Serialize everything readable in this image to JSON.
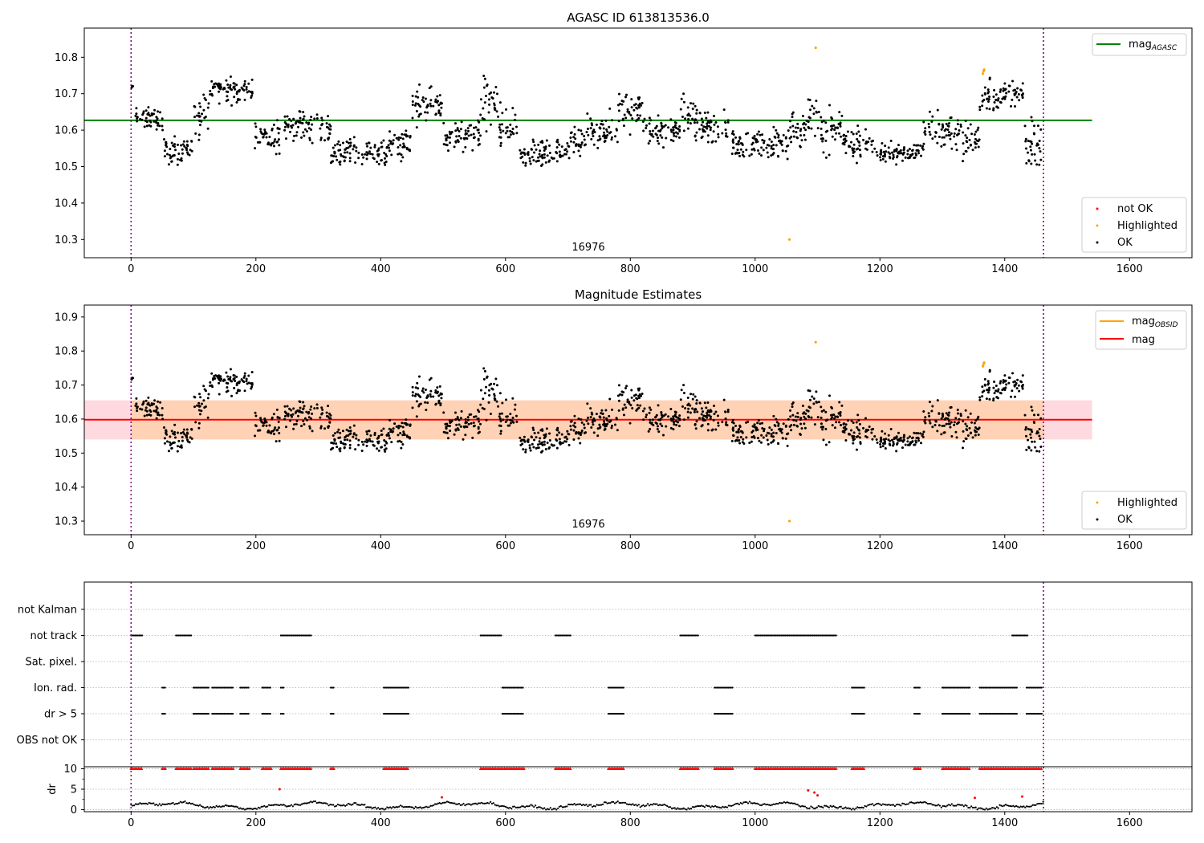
{
  "figure": {
    "title_top": "AGASC ID 613813536.0",
    "title_mid": "Magnitude Estimates"
  },
  "chart_data": [
    {
      "type": "scatter",
      "title": "AGASC ID 613813536.0",
      "xlim": [
        -75,
        1700
      ],
      "ylim": [
        10.25,
        10.88
      ],
      "x_ticks": [
        0,
        200,
        400,
        600,
        800,
        1000,
        1200,
        1400,
        1600
      ],
      "y_ticks": [
        10.3,
        10.4,
        10.5,
        10.6,
        10.7,
        10.8
      ],
      "vlines_dotted": [
        0,
        1462
      ],
      "hline": {
        "name": "mag_AGASC",
        "y": 10.627,
        "x_range": [
          -75,
          1540
        ],
        "color": "#008000"
      },
      "obsid_label": {
        "text": "16976",
        "x": 730,
        "y": 10.27
      },
      "highlighted_points": [
        [
          1055,
          10.3
        ],
        [
          1097,
          10.826
        ],
        [
          1365,
          10.755
        ],
        [
          1366,
          10.762
        ],
        [
          1367,
          10.766
        ]
      ],
      "legend_lines": [
        {
          "name": "mag",
          "sub": "AGASC",
          "color": "#008000"
        }
      ],
      "legend_points": [
        {
          "name": "not OK",
          "color": "#ff0000"
        },
        {
          "name": "Highlighted",
          "color": "#ffa500"
        },
        {
          "name": "OK",
          "color": "#000000"
        }
      ],
      "segments": [
        [
          0,
          3,
          10.72,
          0.01
        ],
        [
          5,
          12,
          10.64,
          0.01
        ],
        [
          14,
          38,
          10.63,
          0.02
        ],
        [
          40,
          52,
          10.63,
          0.025
        ],
        [
          52,
          62,
          10.55,
          0.03
        ],
        [
          62,
          80,
          10.54,
          0.025
        ],
        [
          80,
          100,
          10.55,
          0.02
        ],
        [
          100,
          125,
          10.63,
          0.04
        ],
        [
          125,
          160,
          10.71,
          0.025
        ],
        [
          160,
          195,
          10.71,
          0.025
        ],
        [
          198,
          240,
          10.58,
          0.025
        ],
        [
          245,
          300,
          10.61,
          0.03
        ],
        [
          300,
          320,
          10.61,
          0.03
        ],
        [
          320,
          410,
          10.54,
          0.025
        ],
        [
          410,
          450,
          10.56,
          0.025
        ],
        [
          450,
          500,
          10.67,
          0.03
        ],
        [
          500,
          530,
          10.58,
          0.025
        ],
        [
          530,
          560,
          10.59,
          0.03
        ],
        [
          560,
          590,
          10.68,
          0.05
        ],
        [
          590,
          620,
          10.61,
          0.03
        ],
        [
          620,
          700,
          10.54,
          0.025
        ],
        [
          700,
          730,
          10.57,
          0.025
        ],
        [
          730,
          780,
          10.59,
          0.03
        ],
        [
          780,
          820,
          10.65,
          0.035
        ],
        [
          820,
          880,
          10.6,
          0.025
        ],
        [
          880,
          915,
          10.63,
          0.04
        ],
        [
          915,
          960,
          10.61,
          0.03
        ],
        [
          960,
          1000,
          10.56,
          0.025
        ],
        [
          1000,
          1055,
          10.56,
          0.035
        ],
        [
          1055,
          1085,
          10.6,
          0.03
        ],
        [
          1085,
          1100,
          10.65,
          0.05
        ],
        [
          1100,
          1140,
          10.6,
          0.04
        ],
        [
          1140,
          1190,
          10.56,
          0.03
        ],
        [
          1190,
          1270,
          10.54,
          0.02
        ],
        [
          1270,
          1330,
          10.6,
          0.03
        ],
        [
          1330,
          1360,
          10.57,
          0.03
        ],
        [
          1360,
          1400,
          10.69,
          0.025
        ],
        [
          1400,
          1430,
          10.7,
          0.025
        ],
        [
          1430,
          1462,
          10.56,
          0.05
        ]
      ]
    },
    {
      "type": "scatter",
      "title": "Magnitude Estimates",
      "xlim": [
        -75,
        1700
      ],
      "ylim": [
        10.26,
        10.935
      ],
      "x_ticks": [
        0,
        200,
        400,
        600,
        800,
        1000,
        1200,
        1400,
        1600
      ],
      "y_ticks": [
        10.3,
        10.4,
        10.5,
        10.6,
        10.7,
        10.8,
        10.9
      ],
      "vlines_dotted": [
        0,
        1462
      ],
      "hline": {
        "name": "mag",
        "y": 10.598,
        "x_range": [
          -75,
          1540
        ],
        "color": "#ff0000"
      },
      "band_outer": {
        "y": [
          10.54,
          10.655
        ],
        "x_range": [
          -75,
          1540
        ],
        "color": "#ffc0cb"
      },
      "band_inner": {
        "y": [
          10.54,
          10.655
        ],
        "x_range": [
          0,
          1462
        ],
        "color": "#ffd0b0"
      },
      "obsid_label": {
        "text": "16976",
        "x": 730,
        "y": 10.29
      },
      "highlighted_points": [
        [
          1055,
          10.3
        ],
        [
          1097,
          10.826
        ],
        [
          1365,
          10.755
        ],
        [
          1366,
          10.762
        ],
        [
          1367,
          10.766
        ]
      ],
      "legend_lines": [
        {
          "name": "mag",
          "sub": "OBSID",
          "color": "#ffa500"
        },
        {
          "name": "mag",
          "sub": "",
          "color": "#ff0000"
        }
      ],
      "legend_points": [
        {
          "name": "Highlighted",
          "color": "#ffa500"
        },
        {
          "name": "OK",
          "color": "#000000"
        }
      ]
    },
    {
      "type": "scatter",
      "title": "",
      "xlim": [
        -75,
        1700
      ],
      "ylabels": [
        "not Kalman",
        "not track",
        "Sat. pixel.",
        "Ion. rad.",
        "dr > 5",
        "OBS not OK"
      ],
      "flag_ranges": {
        "not track": [
          [
            0,
            18
          ],
          [
            72,
            98
          ],
          [
            240,
            290
          ],
          [
            560,
            595
          ],
          [
            680,
            705
          ],
          [
            880,
            910
          ],
          [
            1000,
            1130
          ],
          [
            1412,
            1438
          ]
        ],
        "Ion. rad.": [
          [
            50,
            56
          ],
          [
            100,
            125
          ],
          [
            130,
            165
          ],
          [
            175,
            190
          ],
          [
            210,
            225
          ],
          [
            240,
            245
          ],
          [
            320,
            325
          ],
          [
            405,
            445
          ],
          [
            595,
            630
          ],
          [
            765,
            790
          ],
          [
            935,
            965
          ],
          [
            1155,
            1175
          ],
          [
            1255,
            1265
          ],
          [
            1300,
            1345
          ],
          [
            1360,
            1420
          ],
          [
            1435,
            1460
          ]
        ],
        "dr > 5": [
          [
            50,
            56
          ],
          [
            100,
            125
          ],
          [
            130,
            165
          ],
          [
            175,
            190
          ],
          [
            210,
            225
          ],
          [
            240,
            245
          ],
          [
            320,
            325
          ],
          [
            405,
            445
          ],
          [
            595,
            630
          ],
          [
            765,
            790
          ],
          [
            935,
            965
          ],
          [
            1155,
            1175
          ],
          [
            1255,
            1265
          ],
          [
            1300,
            1345
          ],
          [
            1360,
            1420
          ],
          [
            1435,
            1460
          ]
        ]
      },
      "dr": {
        "ylabel": "dr",
        "ylim": [
          -0.5,
          10.5
        ],
        "y_ticks": [
          0,
          5,
          10
        ],
        "red_marker_y": 10,
        "red_ranges": [
          [
            0,
            18
          ],
          [
            50,
            56
          ],
          [
            72,
            98
          ],
          [
            100,
            125
          ],
          [
            130,
            165
          ],
          [
            175,
            190
          ],
          [
            210,
            225
          ],
          [
            240,
            290
          ],
          [
            320,
            325
          ],
          [
            405,
            445
          ],
          [
            560,
            630
          ],
          [
            680,
            705
          ],
          [
            765,
            790
          ],
          [
            880,
            910
          ],
          [
            935,
            965
          ],
          [
            1000,
            1130
          ],
          [
            1155,
            1175
          ],
          [
            1255,
            1265
          ],
          [
            1300,
            1345
          ],
          [
            1360,
            1460
          ]
        ],
        "red_points": [
          [
            238,
            5.0
          ],
          [
            498,
            3.0
          ],
          [
            1085,
            4.7
          ],
          [
            1095,
            4.2
          ],
          [
            1100,
            3.5
          ],
          [
            1352,
            2.9
          ],
          [
            1428,
            3.2
          ]
        ]
      }
    }
  ]
}
